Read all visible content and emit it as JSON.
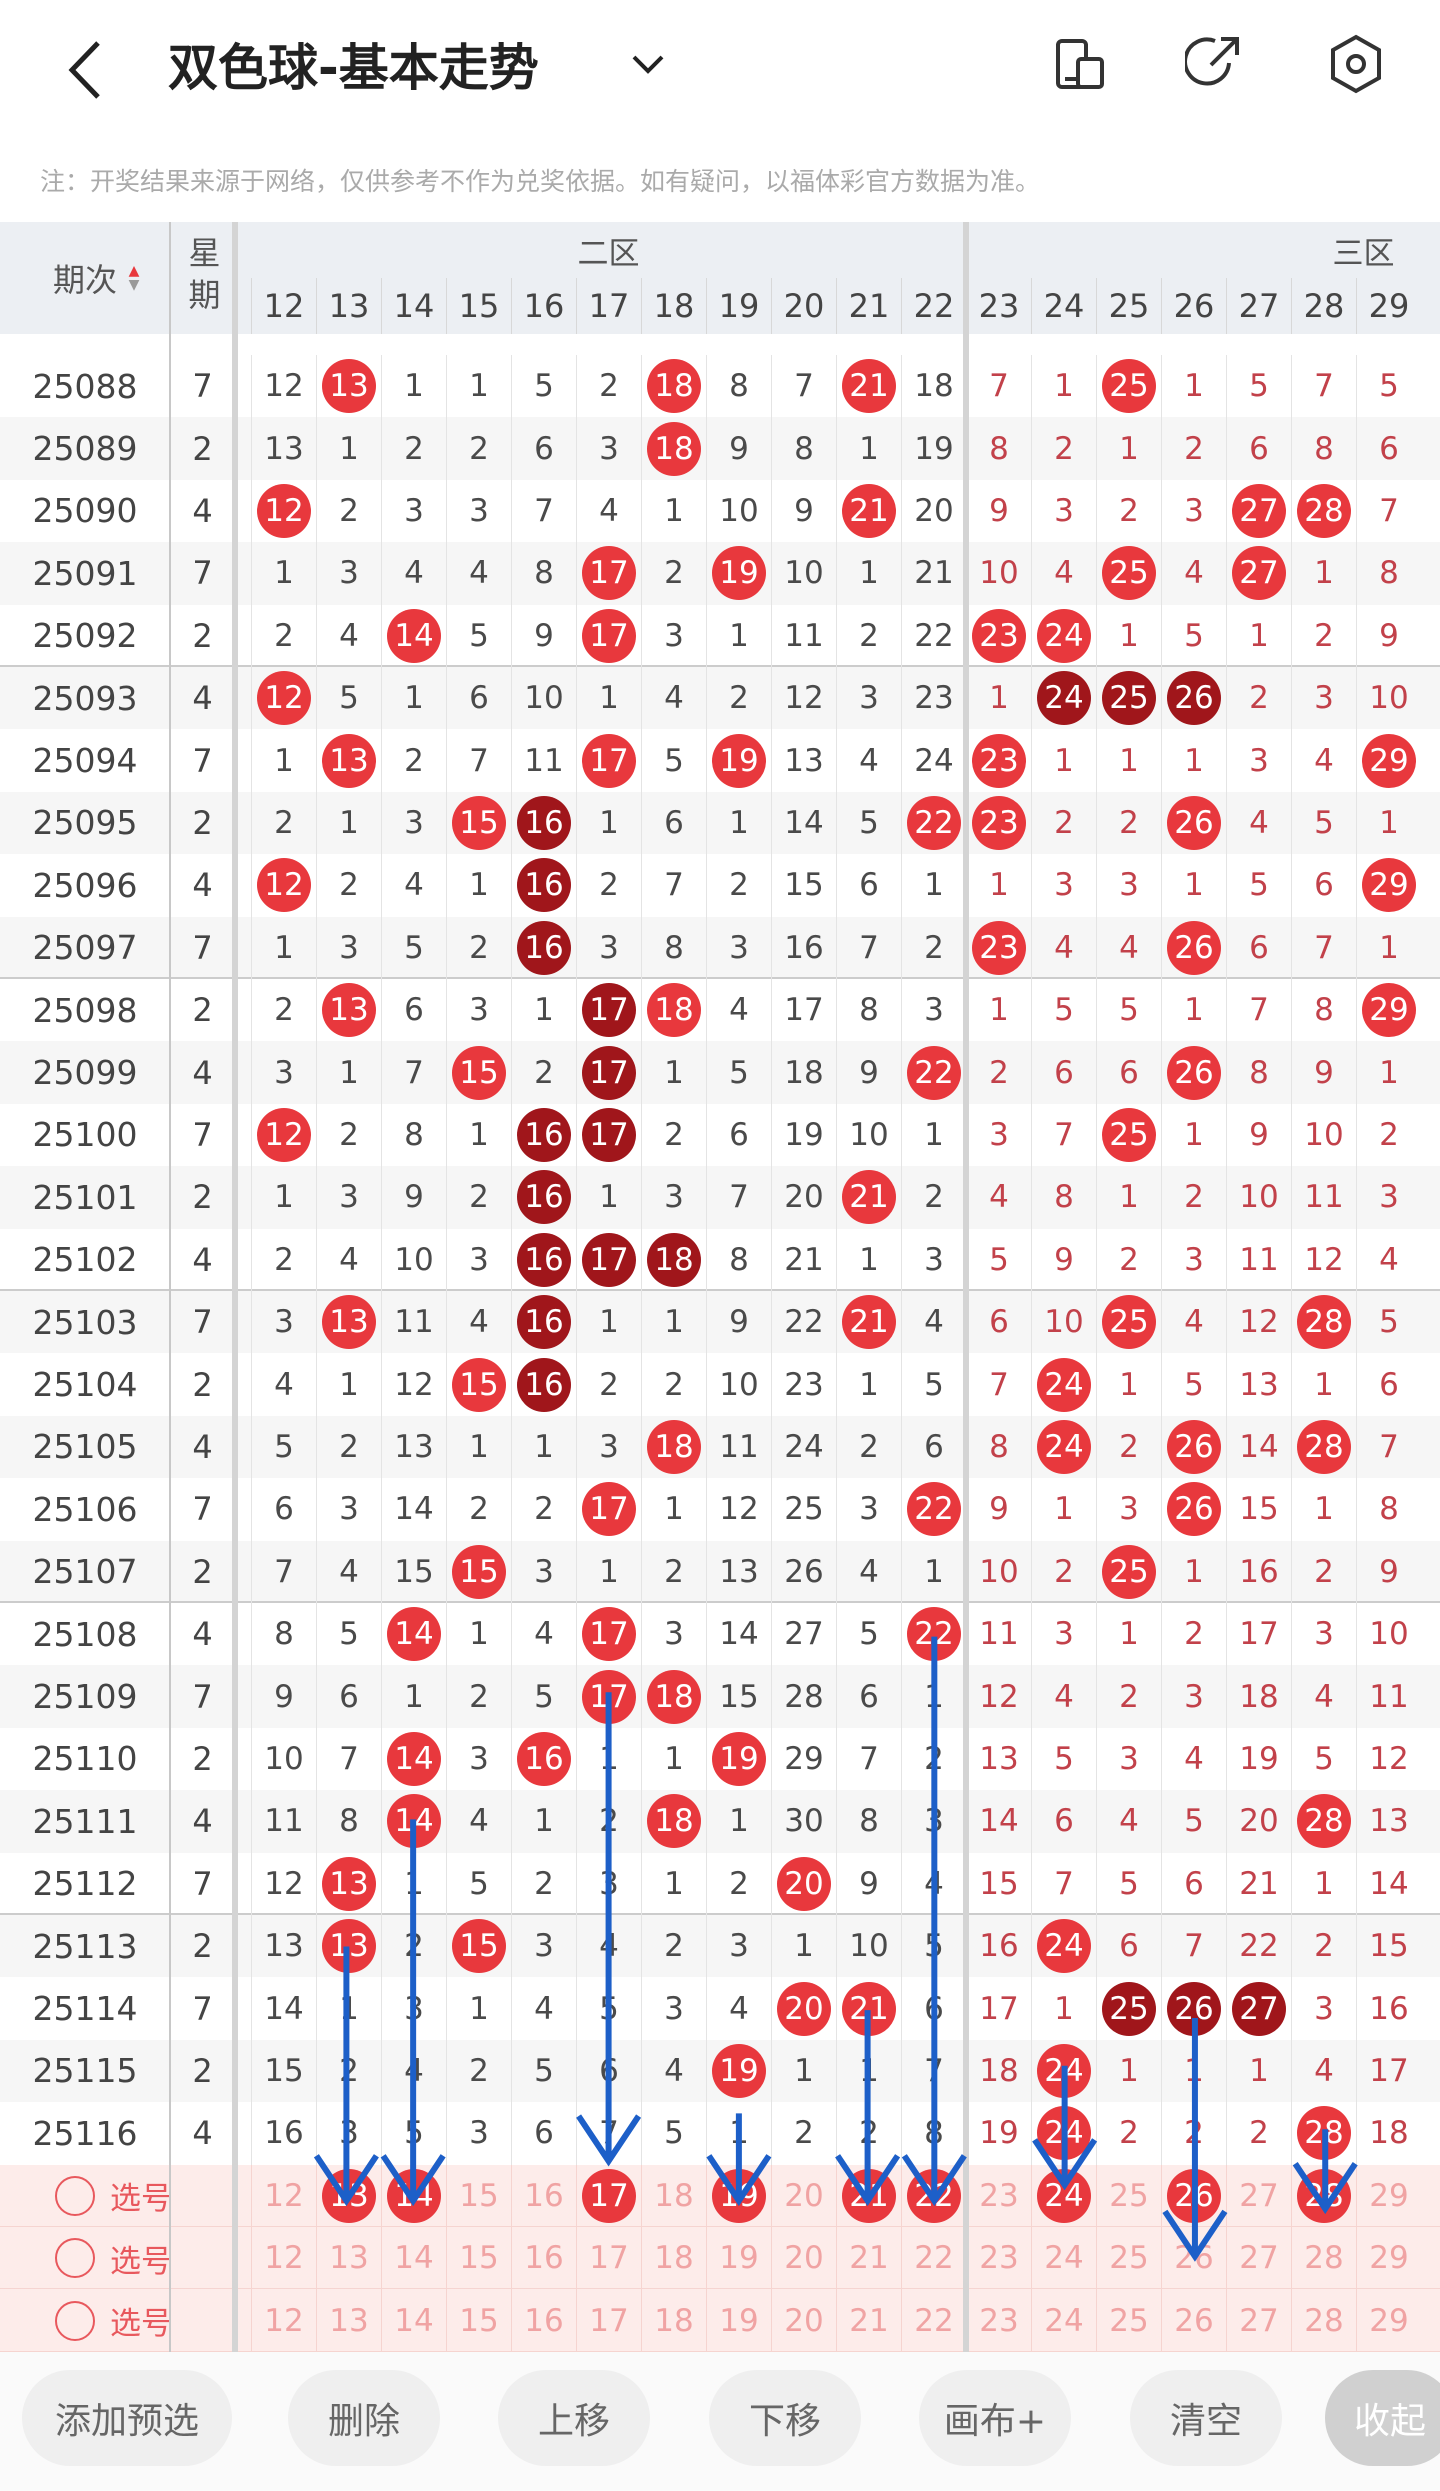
{
  "header": {
    "title": "双色球-基本走势",
    "note": "注：开奖结果来源于网络，仅供参考不作为兑奖依据。如有疑问，以福体彩官方数据为准。"
  },
  "table": {
    "issue_header": "期次",
    "week_header": "星期",
    "zones": [
      "二区",
      "三区"
    ],
    "columns": [
      12,
      13,
      14,
      15,
      16,
      17,
      18,
      19,
      20,
      21,
      22,
      23,
      24,
      25,
      26,
      27,
      28,
      29
    ],
    "rows": [
      {
        "issue": "25088",
        "week": "7",
        "cells": [
          12,
          {
            "n": 13,
            "ball": "red"
          },
          1,
          1,
          5,
          2,
          {
            "n": 18,
            "ball": "red"
          },
          8,
          7,
          {
            "n": 21,
            "ball": "red"
          },
          18,
          7,
          1,
          {
            "n": 25,
            "ball": "red"
          },
          1,
          5,
          7,
          5
        ]
      },
      {
        "issue": "25089",
        "week": "2",
        "cells": [
          13,
          1,
          2,
          2,
          6,
          3,
          {
            "n": 18,
            "ball": "red"
          },
          9,
          8,
          1,
          19,
          8,
          2,
          1,
          2,
          6,
          8,
          6
        ]
      },
      {
        "issue": "25090",
        "week": "4",
        "cells": [
          {
            "n": 12,
            "ball": "red"
          },
          2,
          3,
          3,
          7,
          4,
          1,
          10,
          9,
          {
            "n": 21,
            "ball": "red"
          },
          20,
          9,
          3,
          2,
          3,
          {
            "n": 27,
            "ball": "red"
          },
          {
            "n": 28,
            "ball": "red"
          },
          7
        ]
      },
      {
        "issue": "25091",
        "week": "7",
        "cells": [
          1,
          3,
          4,
          4,
          8,
          {
            "n": 17,
            "ball": "red"
          },
          2,
          {
            "n": 19,
            "ball": "red"
          },
          10,
          1,
          21,
          10,
          4,
          {
            "n": 25,
            "ball": "red"
          },
          4,
          {
            "n": 27,
            "ball": "red"
          },
          1,
          8
        ]
      },
      {
        "issue": "25092",
        "week": "2",
        "cells": [
          2,
          4,
          {
            "n": 14,
            "ball": "red"
          },
          5,
          9,
          {
            "n": 17,
            "ball": "red"
          },
          3,
          1,
          11,
          2,
          22,
          {
            "n": 23,
            "ball": "red"
          },
          {
            "n": 24,
            "ball": "red"
          },
          1,
          5,
          1,
          2,
          9
        ]
      },
      {
        "issue": "25093",
        "week": "4",
        "cells": [
          {
            "n": 12,
            "ball": "red"
          },
          5,
          1,
          6,
          10,
          1,
          4,
          2,
          12,
          3,
          23,
          1,
          {
            "n": 24,
            "ball": "dark"
          },
          {
            "n": 25,
            "ball": "dark"
          },
          {
            "n": 26,
            "ball": "dark"
          },
          2,
          3,
          10
        ]
      },
      {
        "issue": "25094",
        "week": "7",
        "cells": [
          1,
          {
            "n": 13,
            "ball": "red"
          },
          2,
          7,
          11,
          {
            "n": 17,
            "ball": "red"
          },
          5,
          {
            "n": 19,
            "ball": "red"
          },
          13,
          4,
          24,
          {
            "n": 23,
            "ball": "red"
          },
          1,
          1,
          1,
          3,
          4,
          {
            "n": 29,
            "ball": "red"
          }
        ]
      },
      {
        "issue": "25095",
        "week": "2",
        "cells": [
          2,
          1,
          3,
          {
            "n": 15,
            "ball": "red"
          },
          {
            "n": 16,
            "ball": "dark"
          },
          1,
          6,
          1,
          14,
          5,
          {
            "n": 22,
            "ball": "red"
          },
          {
            "n": 23,
            "ball": "red"
          },
          2,
          2,
          {
            "n": 26,
            "ball": "red"
          },
          4,
          5,
          1
        ]
      },
      {
        "issue": "25096",
        "week": "4",
        "cells": [
          {
            "n": 12,
            "ball": "red"
          },
          2,
          4,
          1,
          {
            "n": 16,
            "ball": "dark"
          },
          2,
          7,
          2,
          15,
          6,
          1,
          1,
          3,
          3,
          1,
          5,
          6,
          {
            "n": 29,
            "ball": "red"
          }
        ]
      },
      {
        "issue": "25097",
        "week": "7",
        "cells": [
          1,
          3,
          5,
          2,
          {
            "n": 16,
            "ball": "dark"
          },
          3,
          8,
          3,
          16,
          7,
          2,
          {
            "n": 23,
            "ball": "red"
          },
          4,
          4,
          {
            "n": 26,
            "ball": "red"
          },
          6,
          7,
          1
        ]
      },
      {
        "issue": "25098",
        "week": "2",
        "cells": [
          2,
          {
            "n": 13,
            "ball": "red"
          },
          6,
          3,
          1,
          {
            "n": 17,
            "ball": "dark"
          },
          {
            "n": 18,
            "ball": "red"
          },
          4,
          17,
          8,
          3,
          1,
          5,
          5,
          1,
          7,
          8,
          {
            "n": 29,
            "ball": "red"
          }
        ]
      },
      {
        "issue": "25099",
        "week": "4",
        "cells": [
          3,
          1,
          7,
          {
            "n": 15,
            "ball": "red"
          },
          2,
          {
            "n": 17,
            "ball": "dark"
          },
          1,
          5,
          18,
          9,
          {
            "n": 22,
            "ball": "red"
          },
          2,
          6,
          6,
          {
            "n": 26,
            "ball": "red"
          },
          8,
          9,
          1
        ]
      },
      {
        "issue": "25100",
        "week": "7",
        "cells": [
          {
            "n": 12,
            "ball": "red"
          },
          2,
          8,
          1,
          {
            "n": 16,
            "ball": "dark"
          },
          {
            "n": 17,
            "ball": "dark"
          },
          2,
          6,
          19,
          10,
          1,
          3,
          7,
          {
            "n": 25,
            "ball": "red"
          },
          1,
          9,
          10,
          2
        ]
      },
      {
        "issue": "25101",
        "week": "2",
        "cells": [
          1,
          3,
          9,
          2,
          {
            "n": 16,
            "ball": "dark"
          },
          1,
          3,
          7,
          20,
          {
            "n": 21,
            "ball": "red"
          },
          2,
          4,
          8,
          1,
          2,
          10,
          11,
          3
        ]
      },
      {
        "issue": "25102",
        "week": "4",
        "cells": [
          2,
          4,
          10,
          3,
          {
            "n": 16,
            "ball": "dark"
          },
          {
            "n": 17,
            "ball": "dark"
          },
          {
            "n": 18,
            "ball": "dark"
          },
          8,
          21,
          1,
          3,
          5,
          9,
          2,
          3,
          11,
          12,
          4
        ]
      },
      {
        "issue": "25103",
        "week": "7",
        "cells": [
          3,
          {
            "n": 13,
            "ball": "red"
          },
          11,
          4,
          {
            "n": 16,
            "ball": "dark"
          },
          1,
          1,
          9,
          22,
          {
            "n": 21,
            "ball": "red"
          },
          4,
          6,
          10,
          {
            "n": 25,
            "ball": "red"
          },
          4,
          12,
          {
            "n": 28,
            "ball": "red"
          },
          5
        ]
      },
      {
        "issue": "25104",
        "week": "2",
        "cells": [
          4,
          1,
          12,
          {
            "n": 15,
            "ball": "red"
          },
          {
            "n": 16,
            "ball": "dark"
          },
          2,
          2,
          10,
          23,
          1,
          5,
          7,
          {
            "n": 24,
            "ball": "red"
          },
          1,
          5,
          13,
          1,
          6
        ]
      },
      {
        "issue": "25105",
        "week": "4",
        "cells": [
          5,
          2,
          13,
          1,
          1,
          3,
          {
            "n": 18,
            "ball": "red"
          },
          11,
          24,
          2,
          6,
          8,
          {
            "n": 24,
            "ball": "red"
          },
          2,
          {
            "n": 26,
            "ball": "red"
          },
          14,
          {
            "n": 28,
            "ball": "red"
          },
          7
        ]
      },
      {
        "issue": "25106",
        "week": "7",
        "cells": [
          6,
          3,
          14,
          2,
          2,
          {
            "n": 17,
            "ball": "red"
          },
          1,
          12,
          25,
          3,
          {
            "n": 22,
            "ball": "red"
          },
          9,
          1,
          3,
          {
            "n": 26,
            "ball": "red"
          },
          15,
          1,
          8
        ]
      },
      {
        "issue": "25107",
        "week": "2",
        "cells": [
          7,
          4,
          15,
          {
            "n": 15,
            "ball": "red"
          },
          3,
          1,
          2,
          13,
          26,
          4,
          1,
          10,
          2,
          {
            "n": 25,
            "ball": "red"
          },
          1,
          16,
          2,
          9
        ]
      },
      {
        "issue": "25108",
        "week": "4",
        "cells": [
          8,
          5,
          {
            "n": 14,
            "ball": "red"
          },
          1,
          4,
          {
            "n": 17,
            "ball": "red"
          },
          3,
          14,
          27,
          5,
          {
            "n": 22,
            "ball": "red"
          },
          11,
          3,
          1,
          2,
          17,
          3,
          10
        ]
      },
      {
        "issue": "25109",
        "week": "7",
        "cells": [
          9,
          6,
          1,
          2,
          5,
          {
            "n": 17,
            "ball": "red"
          },
          {
            "n": 18,
            "ball": "red"
          },
          15,
          28,
          6,
          1,
          12,
          4,
          2,
          3,
          18,
          4,
          11
        ]
      },
      {
        "issue": "25110",
        "week": "2",
        "cells": [
          10,
          7,
          {
            "n": 14,
            "ball": "red"
          },
          3,
          {
            "n": 16,
            "ball": "red"
          },
          1,
          1,
          {
            "n": 19,
            "ball": "red"
          },
          29,
          7,
          2,
          13,
          5,
          3,
          4,
          19,
          5,
          12
        ]
      },
      {
        "issue": "25111",
        "week": "4",
        "cells": [
          11,
          8,
          {
            "n": 14,
            "ball": "red"
          },
          4,
          1,
          2,
          {
            "n": 18,
            "ball": "red"
          },
          1,
          30,
          8,
          3,
          14,
          6,
          4,
          5,
          20,
          {
            "n": 28,
            "ball": "red"
          },
          13
        ]
      },
      {
        "issue": "25112",
        "week": "7",
        "cells": [
          12,
          {
            "n": 13,
            "ball": "red"
          },
          1,
          5,
          2,
          3,
          1,
          2,
          {
            "n": 20,
            "ball": "red"
          },
          9,
          4,
          15,
          7,
          5,
          6,
          21,
          1,
          14
        ]
      },
      {
        "issue": "25113",
        "week": "2",
        "cells": [
          13,
          {
            "n": 13,
            "ball": "red"
          },
          2,
          {
            "n": 15,
            "ball": "red"
          },
          3,
          4,
          2,
          3,
          1,
          10,
          5,
          16,
          {
            "n": 24,
            "ball": "red"
          },
          6,
          7,
          22,
          2,
          15
        ]
      },
      {
        "issue": "25114",
        "week": "7",
        "cells": [
          14,
          1,
          3,
          1,
          4,
          5,
          3,
          4,
          {
            "n": 20,
            "ball": "red"
          },
          {
            "n": 21,
            "ball": "red"
          },
          6,
          17,
          1,
          {
            "n": 25,
            "ball": "dark"
          },
          {
            "n": 26,
            "ball": "dark"
          },
          {
            "n": 27,
            "ball": "dark"
          },
          3,
          16
        ]
      },
      {
        "issue": "25115",
        "week": "2",
        "cells": [
          15,
          2,
          4,
          2,
          5,
          6,
          4,
          {
            "n": 19,
            "ball": "red"
          },
          1,
          1,
          7,
          18,
          {
            "n": 24,
            "ball": "red"
          },
          1,
          1,
          1,
          4,
          17
        ]
      },
      {
        "issue": "25116",
        "week": "4",
        "cells": [
          16,
          3,
          5,
          3,
          6,
          7,
          5,
          1,
          2,
          2,
          8,
          19,
          {
            "n": 24,
            "ball": "red"
          },
          2,
          2,
          2,
          {
            "n": 28,
            "ball": "red"
          },
          18
        ]
      }
    ],
    "picks": [
      {
        "label": "选号",
        "cells": [
          12,
          {
            "n": 13,
            "ball": "red"
          },
          {
            "n": 14,
            "ball": "red"
          },
          15,
          16,
          {
            "n": 17,
            "ball": "red"
          },
          18,
          {
            "n": 19,
            "ball": "red"
          },
          20,
          {
            "n": 21,
            "ball": "red"
          },
          {
            "n": 22,
            "ball": "red"
          },
          23,
          {
            "n": 24,
            "ball": "red"
          },
          25,
          {
            "n": 26,
            "ball": "red"
          },
          27,
          {
            "n": 28,
            "ball": "red"
          },
          29
        ]
      },
      {
        "label": "选号",
        "cells": [
          12,
          13,
          14,
          15,
          16,
          17,
          18,
          19,
          20,
          21,
          22,
          23,
          24,
          25,
          26,
          27,
          28,
          29
        ]
      },
      {
        "label": "选号",
        "cells": [
          12,
          13,
          14,
          15,
          16,
          17,
          18,
          19,
          20,
          21,
          22,
          23,
          24,
          25,
          26,
          27,
          28,
          29
        ]
      }
    ]
  },
  "buttons": [
    "添加预选",
    "删除",
    "上移",
    "下移",
    "画布+",
    "清空",
    "收起"
  ]
}
